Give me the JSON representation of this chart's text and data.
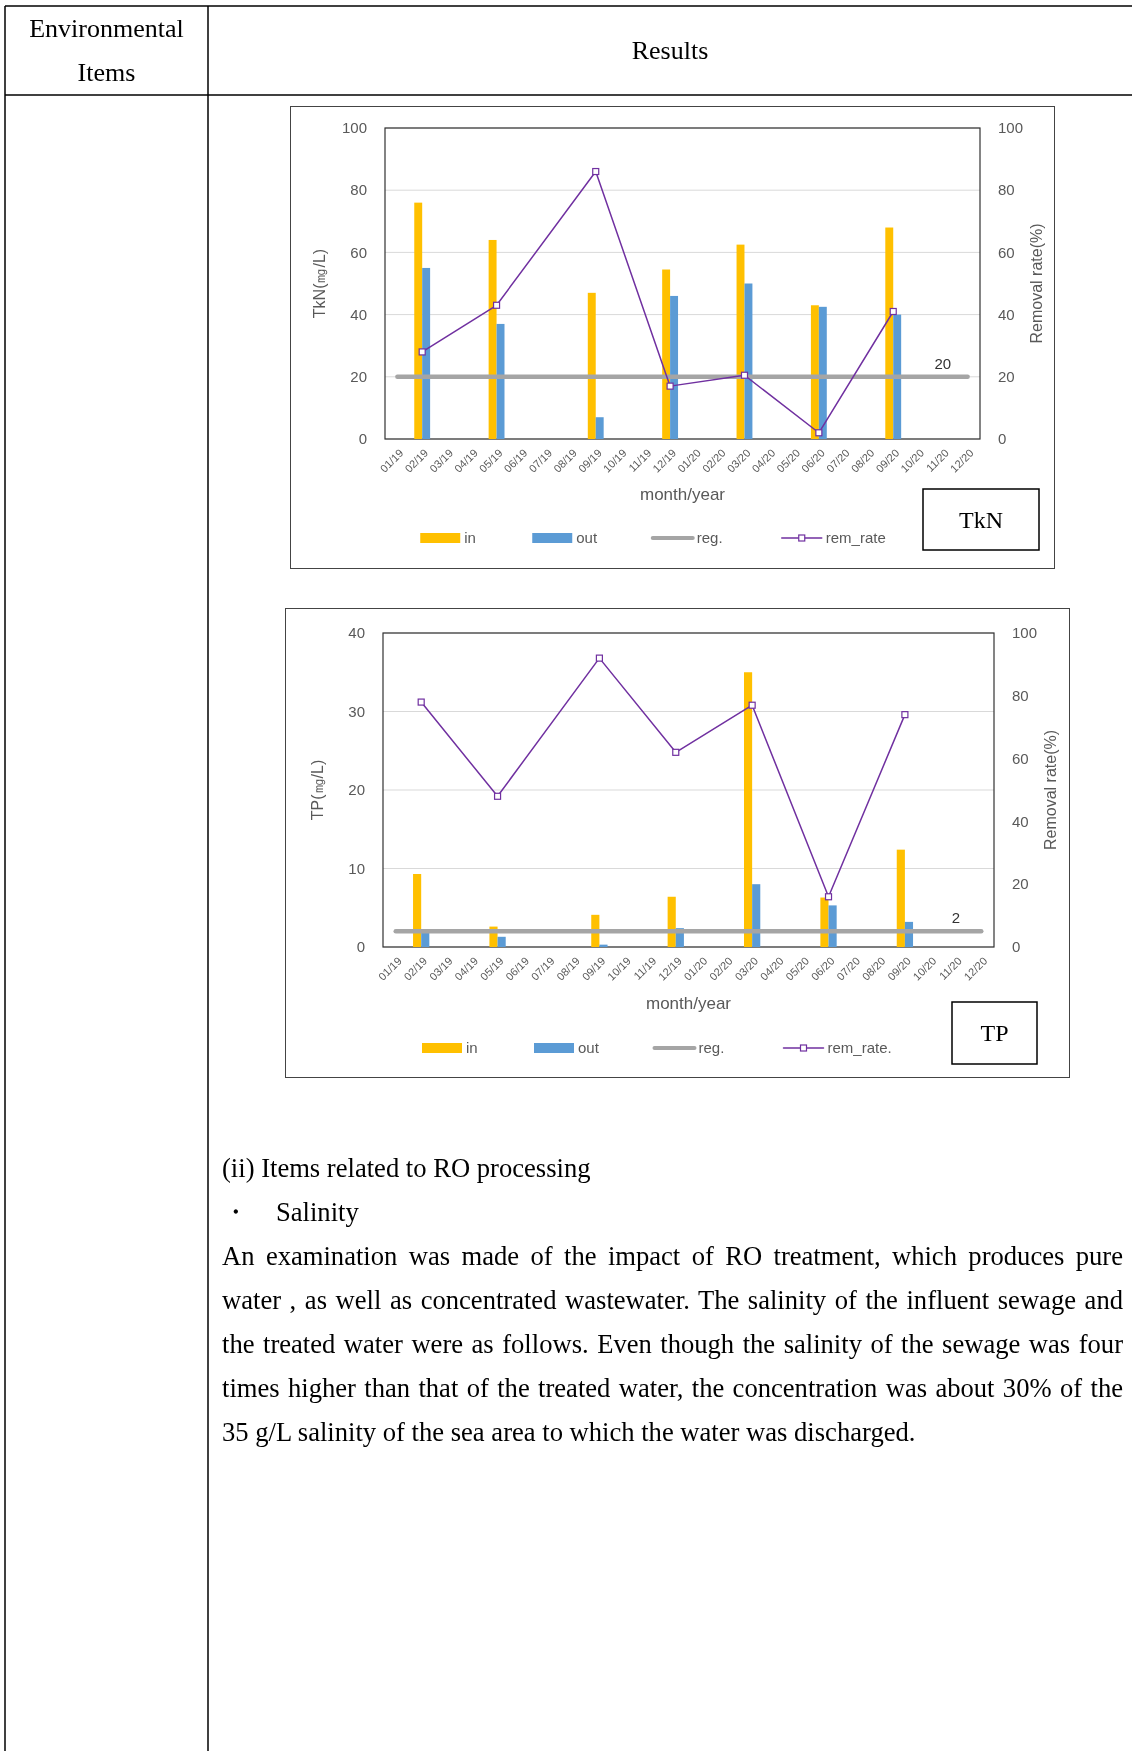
{
  "chart_data": [
    {
      "type": "bar",
      "categories": [
        "01/19",
        "02/19",
        "03/19",
        "04/19",
        "05/19",
        "06/19",
        "07/19",
        "08/19",
        "09/19",
        "10/19",
        "11/19",
        "12/19",
        "01/20",
        "02/20",
        "03/20",
        "04/20",
        "05/20",
        "06/20",
        "07/20",
        "08/20",
        "09/20",
        "10/20",
        "11/20",
        "12/20"
      ],
      "xlabel": "month/year",
      "ylabel": "TkN(㎎/L)",
      "y2label": "Removal rate(%)",
      "ylim": [
        0,
        100
      ],
      "yticks": [
        0,
        20,
        40,
        60,
        80,
        100
      ],
      "y2lim": [
        0,
        100
      ],
      "y2ticks": [
        0,
        20,
        40,
        60,
        80,
        100
      ],
      "grid": "y",
      "legend": "bottom",
      "series": [
        {
          "name": "in",
          "color": "#ffc000",
          "values": [
            null,
            76,
            null,
            null,
            64,
            null,
            null,
            null,
            47,
            null,
            null,
            54.5,
            null,
            null,
            62.5,
            null,
            null,
            43,
            null,
            null,
            68,
            null,
            null,
            null
          ]
        },
        {
          "name": "out",
          "color": "#5b9bd5",
          "values": [
            null,
            55,
            null,
            null,
            37,
            null,
            null,
            null,
            7,
            null,
            null,
            46,
            null,
            null,
            50,
            null,
            null,
            42.5,
            null,
            null,
            40,
            null,
            null,
            null
          ]
        },
        {
          "name": "reg.",
          "type": "line",
          "color": "#a5a5a5",
          "marker": "none",
          "values": [
            20,
            20,
            20,
            20,
            20,
            20,
            20,
            20,
            20,
            20,
            20,
            20,
            20,
            20,
            20,
            20,
            20,
            20,
            20,
            20,
            20,
            20,
            20,
            20
          ]
        },
        {
          "name": "rem_rate",
          "type": "line",
          "axis": "y2",
          "color": "#7030a0",
          "marker": "square",
          "values": [
            null,
            28,
            null,
            null,
            43,
            null,
            null,
            null,
            86,
            null,
            null,
            17,
            null,
            null,
            20.5,
            null,
            null,
            2,
            null,
            null,
            41,
            null,
            null,
            null
          ]
        }
      ],
      "annotations": [
        {
          "text": "20",
          "x": "11/20",
          "y": 20
        },
        "TkN",
        "Environmental Items",
        "Results"
      ]
    },
    {
      "type": "bar",
      "categories": [
        "01/19",
        "02/19",
        "03/19",
        "04/19",
        "05/19",
        "06/19",
        "07/19",
        "08/19",
        "09/19",
        "10/19",
        "11/19",
        "12/19",
        "01/20",
        "02/20",
        "03/20",
        "04/20",
        "05/20",
        "06/20",
        "07/20",
        "08/20",
        "09/20",
        "10/20",
        "11/20",
        "12/20"
      ],
      "xlabel": "month/year",
      "ylabel": "TP(㎎/L)",
      "y2label": "Removal rate(%)",
      "ylim": [
        0,
        40
      ],
      "yticks": [
        0,
        10,
        20,
        30,
        40
      ],
      "y2lim": [
        0,
        100
      ],
      "y2ticks": [
        0,
        20,
        40,
        60,
        80,
        100
      ],
      "grid": "y",
      "legend": "bottom",
      "series": [
        {
          "name": "in",
          "color": "#ffc000",
          "values": [
            null,
            9.3,
            null,
            null,
            2.6,
            null,
            null,
            null,
            4.1,
            null,
            null,
            6.4,
            null,
            null,
            35,
            null,
            null,
            6.3,
            null,
            null,
            12.4,
            null,
            null,
            null
          ]
        },
        {
          "name": "out",
          "color": "#5b9bd5",
          "values": [
            null,
            1.8,
            null,
            null,
            1.3,
            null,
            null,
            null,
            0.3,
            null,
            null,
            2.4,
            null,
            null,
            8,
            null,
            null,
            5.3,
            null,
            null,
            3.2,
            null,
            null,
            null
          ]
        },
        {
          "name": "reg.",
          "type": "line",
          "color": "#a5a5a5",
          "marker": "none",
          "values": [
            2,
            2,
            2,
            2,
            2,
            2,
            2,
            2,
            2,
            2,
            2,
            2,
            2,
            2,
            2,
            2,
            2,
            2,
            2,
            2,
            2,
            2,
            2,
            2
          ]
        },
        {
          "name": "rem_rate.",
          "type": "line",
          "axis": "y2",
          "color": "#7030a0",
          "marker": "square",
          "values": [
            null,
            78,
            null,
            null,
            48,
            null,
            null,
            null,
            92,
            null,
            null,
            62,
            null,
            null,
            77,
            null,
            null,
            16,
            null,
            null,
            74,
            null,
            null,
            null
          ]
        }
      ],
      "annotations": [
        {
          "text": "2",
          "x": "11/20",
          "y": 2
        },
        "TP",
        "(ii) Items related to RO processing",
        "・　Salinity",
        "An examination was made of the impact of RO treatment, which produces pure water , as well as concentrated wastewater. The salinity of the influent sewage and the treated water were as follows. Even though the salinity of the sewage was four times higher than that of the treated water, the concentration was about 30% of the 35 g/L salinity of the sea area to which the water was discharged."
      ]
    }
  ]
}
